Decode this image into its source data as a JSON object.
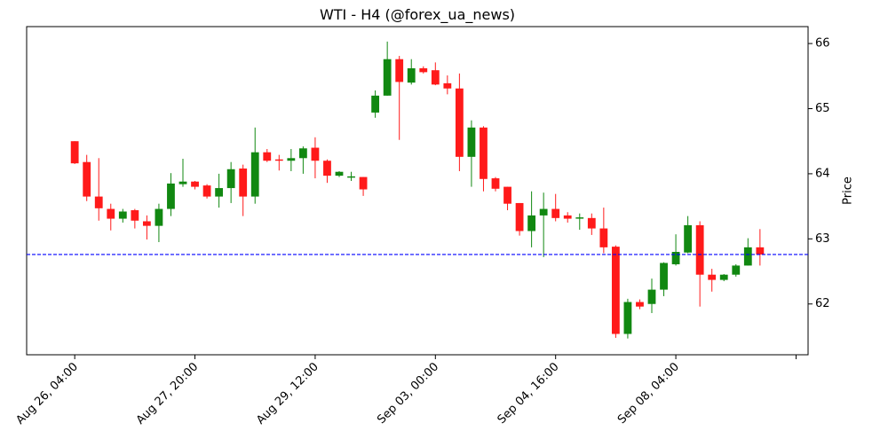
{
  "chart_data": {
    "type": "candlestick",
    "title": "WTI - H4 (@forex_ua_news)",
    "ylabel": "Price",
    "open": [
      64.5,
      64.18,
      63.65,
      63.46,
      63.31,
      63.44,
      63.27,
      63.2,
      63.46,
      63.84,
      63.88,
      63.82,
      63.65,
      63.78,
      64.08,
      63.65,
      64.33,
      64.22,
      64.2,
      64.24,
      64.4,
      64.2,
      63.97,
      63.94,
      63.95,
      64.94,
      65.2,
      65.76,
      65.4,
      65.62,
      65.59,
      65.39,
      65.31,
      64.26,
      64.71,
      63.93,
      63.8,
      63.55,
      63.12,
      63.36,
      63.46,
      63.36,
      63.31,
      63.32,
      63.16,
      62.88,
      61.54,
      62.03,
      62.0,
      62.22,
      62.61,
      62.79,
      63.21,
      62.45,
      62.37,
      62.45,
      62.59,
      62.87
    ],
    "high": [
      64.5,
      64.29,
      64.24,
      63.54,
      63.46,
      63.46,
      63.36,
      63.54,
      64.01,
      64.23,
      63.89,
      63.84,
      64.0,
      64.18,
      64.14,
      64.71,
      64.38,
      64.29,
      64.38,
      64.42,
      64.56,
      64.22,
      64.04,
      64.03,
      63.95,
      65.28,
      66.03,
      65.81,
      65.76,
      65.65,
      65.71,
      65.51,
      65.54,
      64.82,
      64.73,
      63.95,
      63.8,
      63.55,
      63.73,
      63.71,
      63.69,
      63.41,
      63.39,
      63.39,
      63.48,
      62.9,
      62.08,
      62.07,
      62.39,
      62.64,
      63.07,
      63.35,
      63.27,
      62.54,
      62.46,
      62.61,
      63.01,
      63.15
    ],
    "low": [
      64.15,
      63.58,
      63.28,
      63.13,
      63.25,
      63.16,
      62.99,
      62.95,
      63.35,
      63.8,
      63.76,
      63.62,
      63.48,
      63.55,
      63.35,
      63.54,
      64.18,
      64.05,
      64.04,
      64.0,
      63.93,
      63.86,
      63.95,
      63.89,
      63.66,
      64.86,
      65.2,
      64.52,
      65.37,
      65.54,
      65.36,
      65.22,
      64.04,
      63.8,
      63.73,
      63.73,
      63.44,
      63.05,
      62.87,
      62.72,
      63.27,
      63.25,
      63.14,
      63.06,
      62.78,
      61.48,
      61.47,
      61.92,
      61.86,
      62.12,
      62.59,
      62.78,
      61.96,
      62.19,
      62.35,
      62.42,
      62.59,
      62.59
    ],
    "close": [
      64.16,
      63.65,
      63.47,
      63.31,
      63.42,
      63.28,
      63.2,
      63.46,
      63.85,
      63.88,
      63.8,
      63.65,
      63.78,
      64.07,
      63.65,
      64.33,
      64.2,
      64.2,
      64.24,
      64.39,
      64.2,
      63.97,
      64.03,
      63.96,
      63.76,
      65.2,
      65.76,
      65.41,
      65.62,
      65.56,
      65.37,
      65.31,
      64.26,
      64.71,
      63.92,
      63.77,
      63.54,
      63.12,
      63.36,
      63.46,
      63.32,
      63.31,
      63.33,
      63.16,
      62.87,
      61.54,
      62.03,
      61.96,
      62.22,
      62.63,
      62.8,
      63.21,
      62.45,
      62.37,
      62.45,
      62.59,
      62.87,
      62.76
    ],
    "up_color": "#118811",
    "down_color": "#ff1a1a",
    "hline": {
      "value": 62.76,
      "color": "#0000ff"
    },
    "xlim": [
      -4,
      61
    ],
    "xticks": [
      {
        "value": 0,
        "label": "Aug 26, 04:00"
      },
      {
        "value": 10,
        "label": "Aug 27, 20:00"
      },
      {
        "value": 20,
        "label": "Aug 29, 12:00"
      },
      {
        "value": 30,
        "label": "Sep 03, 00:00"
      },
      {
        "value": 40,
        "label": "Sep 04, 16:00"
      },
      {
        "value": 50,
        "label": "Sep 08, 04:00"
      },
      {
        "value": 60,
        "label": null
      }
    ],
    "ylim": [
      61.22,
      66.26
    ],
    "yticks": [
      62,
      63,
      64,
      65,
      66
    ]
  }
}
